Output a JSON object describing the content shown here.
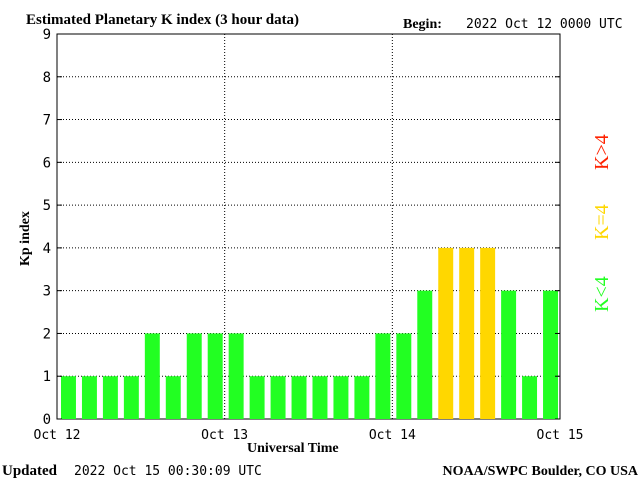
{
  "header": {
    "title": "Estimated Planetary K index (3 hour data)",
    "begin_label": "Begin:",
    "begin_value": "2022 Oct 12 0000 UTC"
  },
  "footer": {
    "updated_label": "Updated",
    "updated_value": "2022 Oct 15 00:30:09 UTC",
    "source": "NOAA/SWPC Boulder, CO USA"
  },
  "legend": {
    "low": "K<4",
    "mid": "K=4",
    "high": "K>4"
  },
  "colors": {
    "low": "#22ff22",
    "mid": "#ffd700",
    "high": "#ff2200",
    "grid": "#000000",
    "text": "#000000"
  },
  "chart_data": {
    "type": "bar",
    "xlabel": "Universal Time",
    "ylabel": "Kp index",
    "ylim": [
      0,
      9
    ],
    "yticks": [
      "0",
      "1",
      "2",
      "3",
      "4",
      "5",
      "6",
      "7",
      "8",
      "9"
    ],
    "xtick_labels": [
      "Oct 12",
      "Oct 13",
      "Oct 14",
      "Oct 15"
    ],
    "grid": true,
    "values": [
      1,
      1,
      1,
      1,
      2,
      1,
      2,
      2,
      2,
      1,
      1,
      1,
      1,
      1,
      1,
      2,
      2,
      3,
      4,
      4,
      4,
      3,
      1,
      3
    ]
  }
}
